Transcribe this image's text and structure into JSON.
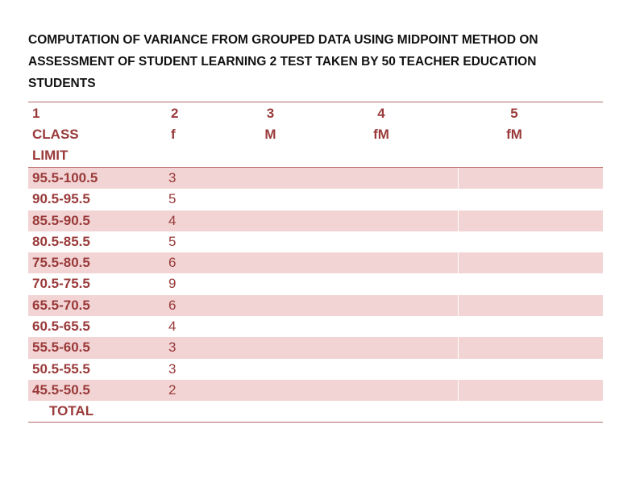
{
  "title": "COMPUTATION OF VARIANCE FROM GROUPED DATA USING MIDPOINT METHOD ON ASSESSMENT OF STUDENT LEARNING 2 TEST TAKEN BY 50 TEACHER EDUCATION STUDENTS",
  "header": {
    "col1": [
      "1",
      "CLASS",
      "LIMIT"
    ],
    "col2": [
      "2",
      "f"
    ],
    "col3": [
      "3",
      "M"
    ],
    "col4": [
      "4",
      "fM"
    ],
    "col5": [
      "5",
      "fM"
    ]
  },
  "rows": [
    {
      "class_limit": "95.5-100.5",
      "f": "3"
    },
    {
      "class_limit": "90.5-95.5",
      "f": "5"
    },
    {
      "class_limit": "85.5-90.5",
      "f": "4"
    },
    {
      "class_limit": "80.5-85.5",
      "f": "5"
    },
    {
      "class_limit": "75.5-80.5",
      "f": "6"
    },
    {
      "class_limit": "70.5-75.5",
      "f": "9"
    },
    {
      "class_limit": "65.5-70.5",
      "f": "6"
    },
    {
      "class_limit": "60.5-65.5",
      "f": "4"
    },
    {
      "class_limit": "55.5-60.5",
      "f": "3"
    },
    {
      "class_limit": "50.5-55.5",
      "f": "3"
    },
    {
      "class_limit": "45.5-50.5",
      "f": "2"
    }
  ],
  "total_label": "TOTAL"
}
